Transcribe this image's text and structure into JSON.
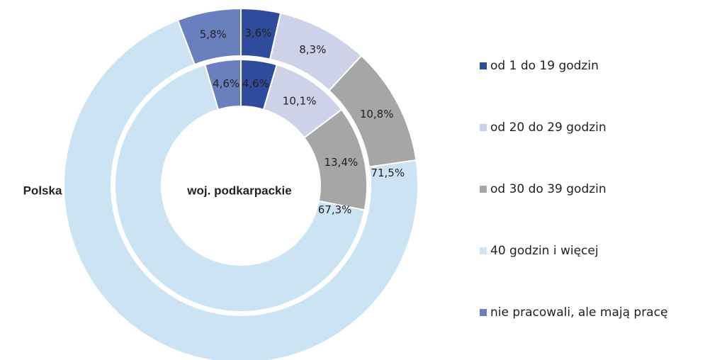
{
  "chart_data": {
    "type": "donut",
    "categories": [
      "od 1 do 19 godzin",
      "od 20 do 29 godzin",
      "od 30 do 39 godzin",
      "40 godzin i więcej",
      "nie pracowali, ale mają pracę"
    ],
    "colors": [
      "#2f4b9b",
      "#cdd2e8",
      "#a6a6a6",
      "#cce3f3",
      "#6a7fbe"
    ],
    "series": [
      {
        "name": "Polska",
        "values": [
          3.6,
          8.3,
          10.8,
          71.5,
          5.8
        ],
        "value_labels": [
          "3,6%",
          "8,3%",
          "10,8%",
          "71,5%",
          "5,8%"
        ]
      },
      {
        "name": "woj. podkarpackie",
        "values": [
          4.6,
          10.1,
          13.4,
          67.3,
          4.6
        ],
        "value_labels": [
          "4,6%",
          "10,1%",
          "13,4%",
          "67,3%",
          "4,6%"
        ]
      }
    ]
  }
}
